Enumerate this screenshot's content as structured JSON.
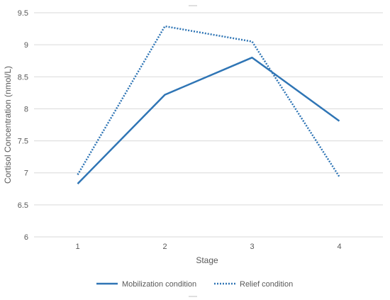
{
  "chart_data": {
    "type": "line",
    "x": [
      "1",
      "2",
      "3",
      "4"
    ],
    "xlabel": "Stage",
    "ylabel": "Cortisol Concentration (nmol/L)",
    "ylim": [
      6,
      9.5
    ],
    "yticks": [
      "6",
      "6.5",
      "7",
      "7.5",
      "8",
      "8.5",
      "9",
      "9.5"
    ],
    "grid": true,
    "legend_position": "bottom",
    "series": [
      {
        "name": "Mobilization condition",
        "values": [
          6.83,
          8.22,
          8.8,
          7.81
        ],
        "style": "solid",
        "color": "#2f75b5"
      },
      {
        "name": "Relief condition",
        "values": [
          6.97,
          9.29,
          9.05,
          6.94
        ],
        "style": "dotted",
        "color": "#2f75b5"
      }
    ]
  },
  "colors": {
    "grid": "#d9d9d9",
    "text": "#595959",
    "series": "#2f75b5"
  }
}
